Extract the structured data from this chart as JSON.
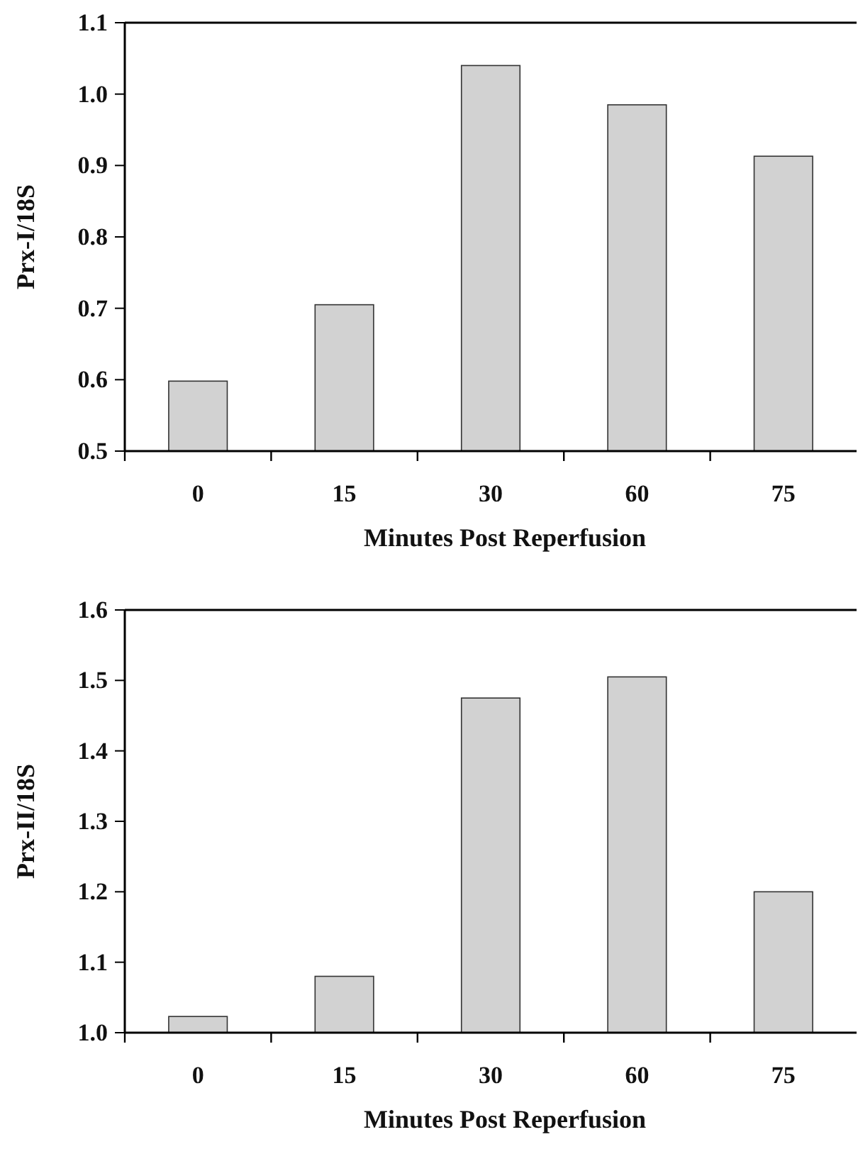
{
  "chart_data": [
    {
      "type": "bar",
      "ylabel": "Prx-I/18S",
      "xlabel": "Minutes Post Reperfusion",
      "categories": [
        "0",
        "15",
        "30",
        "60",
        "75"
      ],
      "values": [
        0.598,
        0.705,
        1.04,
        0.985,
        0.913
      ],
      "color": "#d2d2d2",
      "ylim": [
        0.5,
        1.1
      ],
      "yticks": [
        {
          "value": 0.5,
          "label": "0.5"
        },
        {
          "value": 0.6,
          "label": "0.6"
        },
        {
          "value": 0.7,
          "label": "0.7"
        },
        {
          "value": 0.8,
          "label": "0.8"
        },
        {
          "value": 0.9,
          "label": "0.9"
        },
        {
          "value": 1.0,
          "label": "1.0"
        },
        {
          "value": 1.1,
          "label": "1.1"
        }
      ]
    },
    {
      "type": "bar",
      "ylabel": "Prx-II/18S",
      "xlabel": "Minutes Post Reperfusion",
      "categories": [
        "0",
        "15",
        "30",
        "60",
        "75"
      ],
      "values": [
        1.023,
        1.08,
        1.475,
        1.505,
        1.2
      ],
      "color": "#d2d2d2",
      "ylim": [
        1.0,
        1.6
      ],
      "yticks": [
        {
          "value": 1.0,
          "label": "1.0"
        },
        {
          "value": 1.1,
          "label": "1.1"
        },
        {
          "value": 1.2,
          "label": "1.2"
        },
        {
          "value": 1.3,
          "label": "1.3"
        },
        {
          "value": 1.4,
          "label": "1.4"
        },
        {
          "value": 1.5,
          "label": "1.5"
        },
        {
          "value": 1.6,
          "label": "1.6"
        }
      ]
    }
  ]
}
